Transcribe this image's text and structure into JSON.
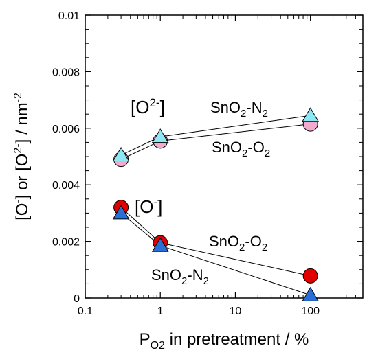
{
  "chart_data": {
    "type": "scatter",
    "x_scale": "log",
    "xlim": [
      0.1,
      500
    ],
    "ylim": [
      0,
      0.01
    ],
    "x_ticks": [
      {
        "value": 0.1,
        "label": "0.1"
      },
      {
        "value": 1,
        "label": "1"
      },
      {
        "value": 10,
        "label": "10"
      },
      {
        "value": 100,
        "label": "100"
      }
    ],
    "y_ticks": [
      {
        "value": 0,
        "label": "0"
      },
      {
        "value": 0.002,
        "label": "0.002"
      },
      {
        "value": 0.004,
        "label": "0.004"
      },
      {
        "value": 0.006,
        "label": "0.006"
      },
      {
        "value": 0.008,
        "label": "0.008"
      },
      {
        "value": 0.01,
        "label": "0.01"
      }
    ],
    "xlabel": "PO2 in pretreatment / %",
    "ylabel": "[O-] or [O2-] / nm-2",
    "grid": false,
    "series": [
      {
        "marker": "triangle",
        "color": "#8ee8f4",
        "x": [
          0.3,
          1,
          100
        ],
        "y": [
          0.00505,
          0.0057,
          0.00645
        ]
      },
      {
        "marker": "circle",
        "color": "#f4aacc",
        "x": [
          0.3,
          1,
          100
        ],
        "y": [
          0.0049,
          0.00555,
          0.00615
        ]
      },
      {
        "marker": "circle",
        "color": "#e00000",
        "x": [
          0.3,
          1,
          100
        ],
        "y": [
          0.0032,
          0.00195,
          0.00078
        ]
      },
      {
        "marker": "triangle",
        "color": "#2a6fd8",
        "x": [
          0.3,
          1,
          100
        ],
        "y": [
          0.003,
          0.00185,
          0.0001
        ]
      }
    ],
    "annotations": [
      {
        "text": "[O2-]",
        "x": 0.5,
        "y": 0.0068
      },
      {
        "text": "SnO2-N2",
        "x": 25,
        "y": 0.0067
      },
      {
        "text": "SnO2-O2",
        "x": 25,
        "y": 0.0053
      },
      {
        "text": "[O-]",
        "x": 0.75,
        "y": 0.0032
      },
      {
        "text": "SnO2-O2",
        "x": 22,
        "y": 0.0018
      },
      {
        "text": "SnO2-N2",
        "x": 5.5,
        "y": 0.00075
      }
    ]
  }
}
